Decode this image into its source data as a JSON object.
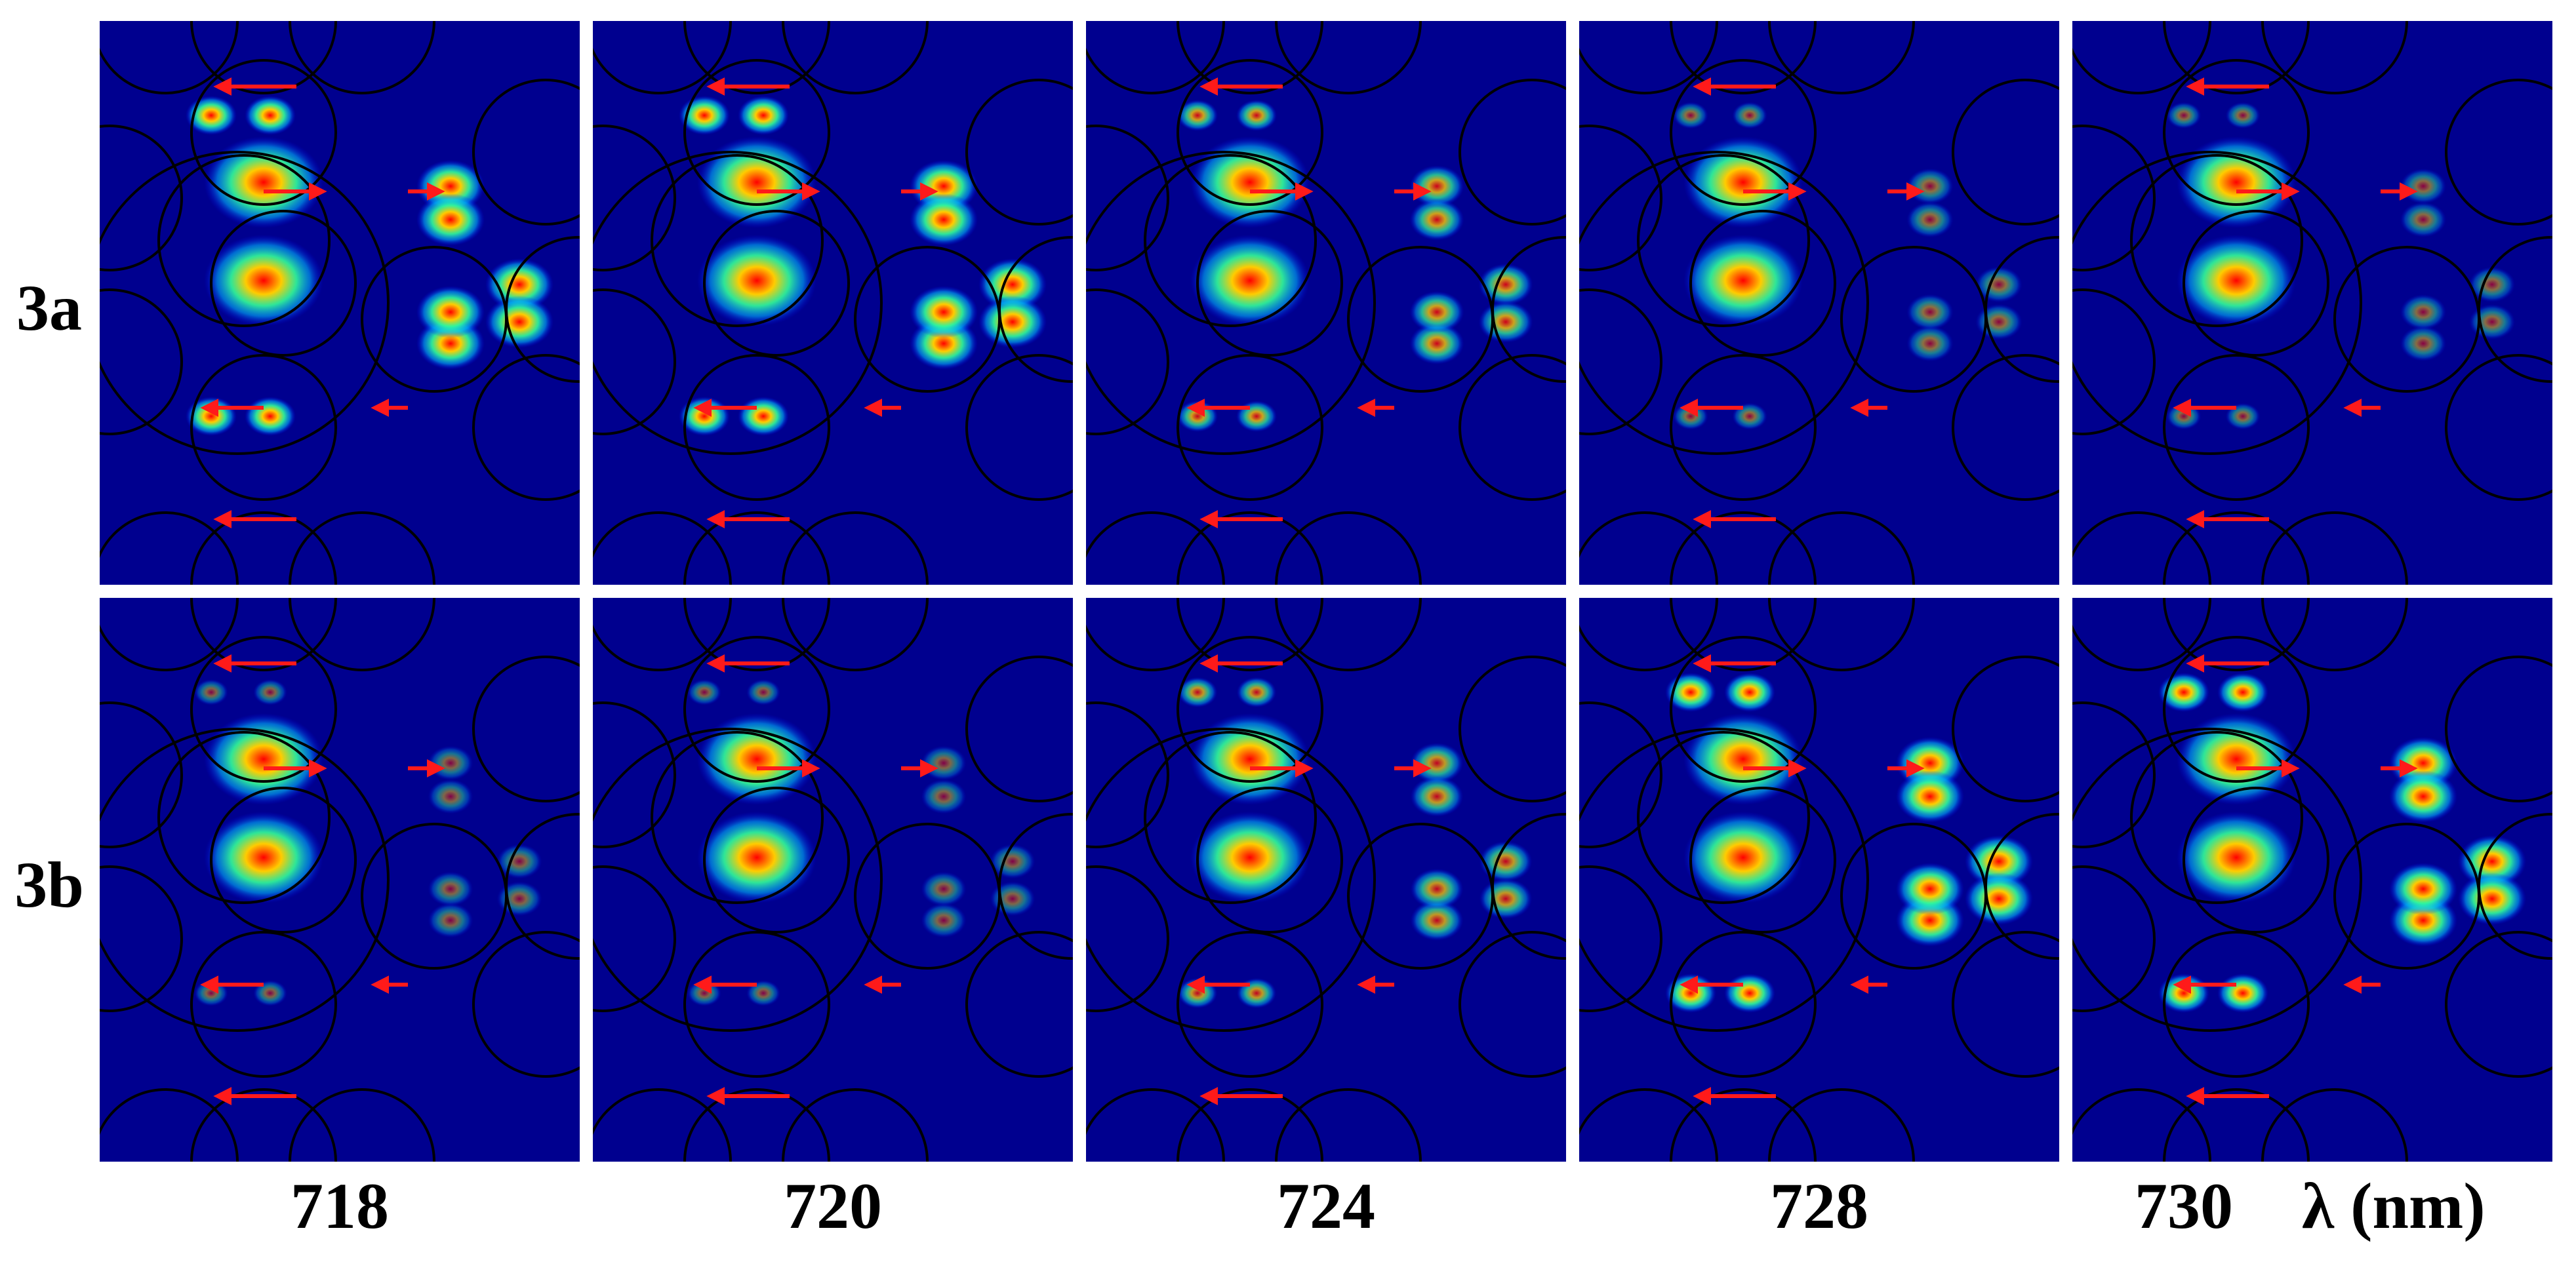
{
  "rows": [
    {
      "label": "3a",
      "intensity": [
        1.0,
        1.0,
        0.55,
        0.3,
        0.28
      ]
    },
    {
      "label": "3b",
      "intensity": [
        0.25,
        0.25,
        0.5,
        1.0,
        1.0
      ]
    }
  ],
  "columns": [
    "718",
    "720",
    "724",
    "728",
    "730"
  ],
  "unit_label": "λ (nm)",
  "colors": {
    "field_background": "#00008f",
    "rod_outline": "#000000",
    "arrow": "#ff1a1a"
  }
}
